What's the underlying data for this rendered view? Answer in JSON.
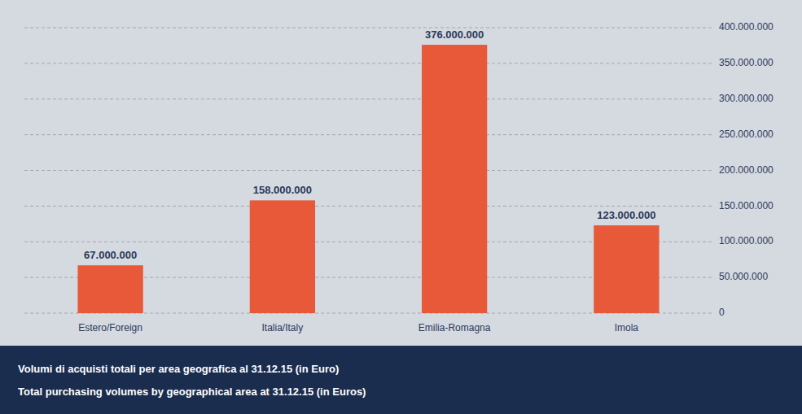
{
  "chart_data": {
    "type": "bar",
    "title": "Volumi di acquisti totali per area geografica al 31.12.15 (in Euro)",
    "subtitle": "Total purchasing volumes by geographical area at 31.12.15 (in Euros)",
    "categories": [
      "Estero/Foreign",
      "Italia/Italy",
      "Emilia-Romagna",
      "Imola"
    ],
    "values": [
      67000000,
      158000000,
      376000000,
      123000000
    ],
    "value_labels": [
      "67.000.000",
      "158.000.000",
      "376.000.000",
      "123.000.000"
    ],
    "color": "#E8593A",
    "ylim": [
      0,
      400000000
    ],
    "yticks": [
      0,
      {
        "value": 50000000,
        "label": "50.000.000"
      },
      {
        "value": 100000000,
        "label": "100.000.000"
      },
      {
        "value": 150000000,
        "label": "150.000.000"
      },
      {
        "value": 200000000,
        "label": "200.000.000"
      },
      {
        "value": 250000000,
        "label": "250.000.000"
      },
      {
        "value": 300000000,
        "label": "300.000.000"
      },
      {
        "value": 350000000,
        "label": "350.000.000"
      },
      {
        "value": 400000000,
        "label": "400.000.000"
      }
    ],
    "grid": true,
    "data_labels": true
  }
}
